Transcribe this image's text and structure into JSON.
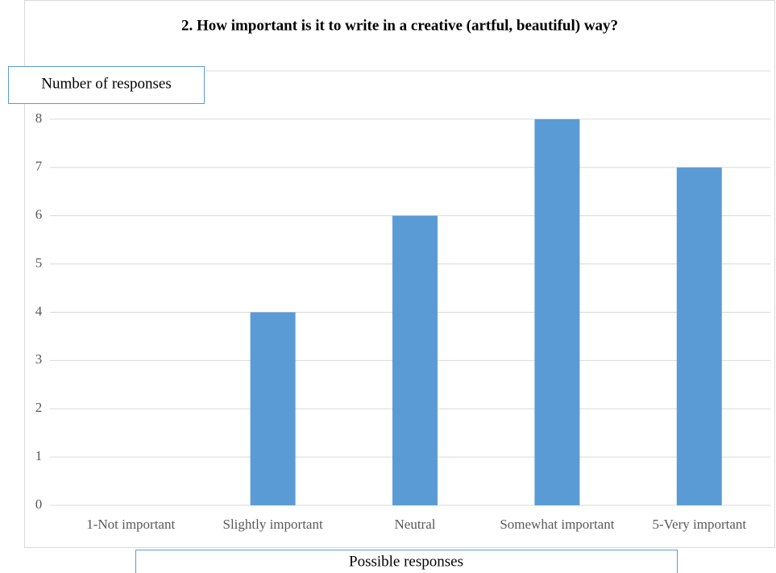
{
  "chart_data": {
    "type": "bar",
    "title": "2. How important is it to write in a creative (artful, beautiful) way?",
    "y_label": "Number of responses",
    "x_label": "Possible responses",
    "categories": [
      "1-Not important",
      "Slightly important",
      "Neutral",
      "Somewhat important",
      "5-Very important"
    ],
    "values": [
      0,
      4,
      6,
      8,
      7
    ],
    "color": "#5b9bd5",
    "ylim": [
      0,
      9
    ],
    "yticks": [
      0,
      1,
      2,
      3,
      4,
      5,
      6,
      7,
      8
    ],
    "grid": true
  }
}
